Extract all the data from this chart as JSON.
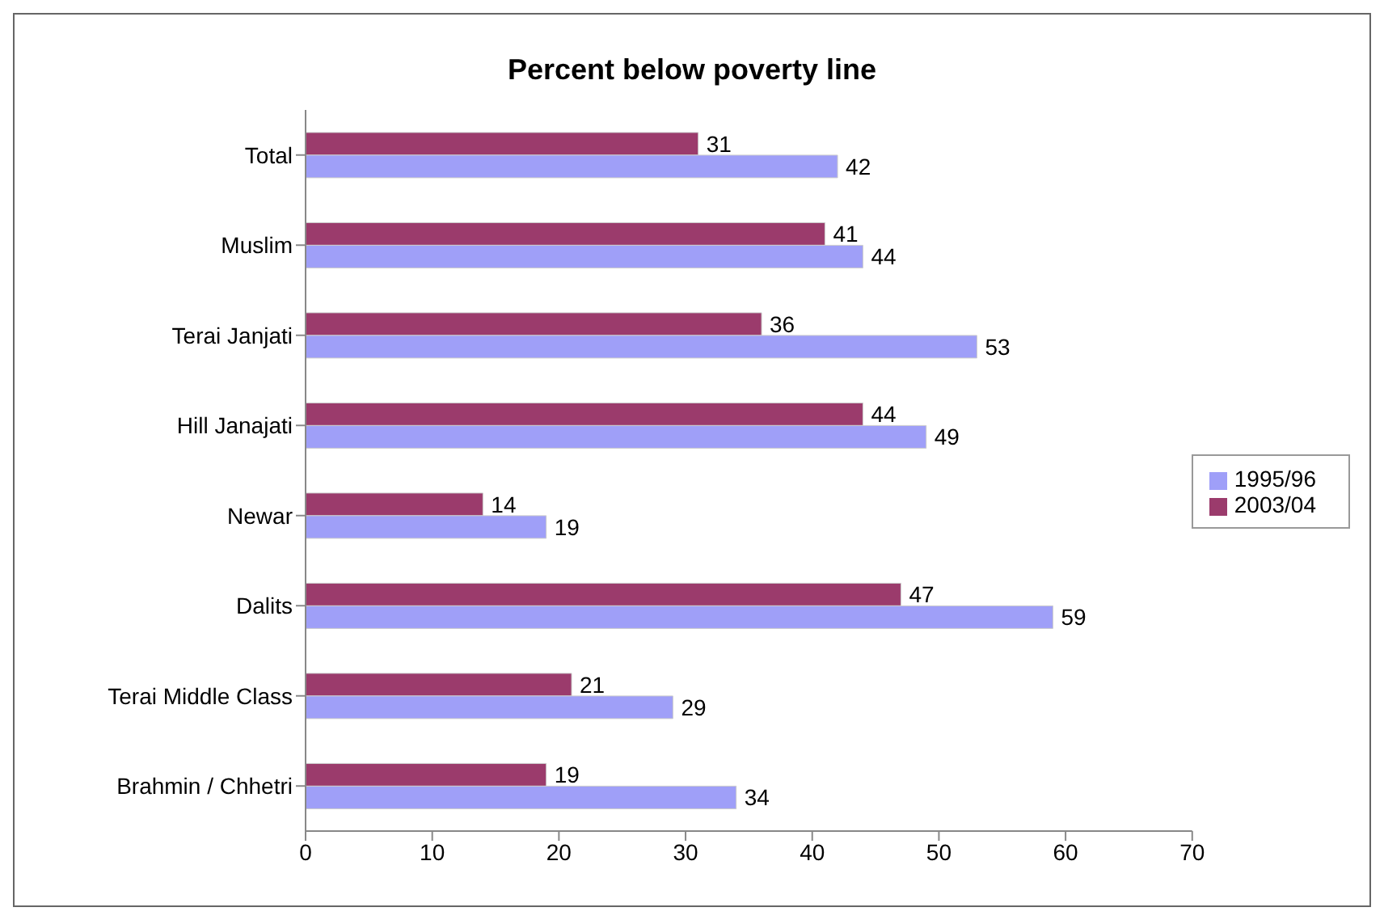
{
  "chart_data": {
    "type": "bar",
    "orientation": "horizontal",
    "title": "Percent below poverty line",
    "categories": [
      "Total",
      "Muslim",
      "Terai Janjati",
      "Hill Janajati",
      "Newar",
      "Dalits",
      "Terai Middle Class",
      "Brahmin / Chhetri"
    ],
    "series": [
      {
        "name": "2003/04",
        "color": "#9b3b6c",
        "values": [
          31,
          41,
          36,
          44,
          14,
          47,
          21,
          19
        ]
      },
      {
        "name": "1995/96",
        "color": "#9f9ff8",
        "values": [
          42,
          44,
          53,
          49,
          19,
          59,
          29,
          34
        ]
      }
    ],
    "xlim": [
      0,
      70
    ],
    "xticks": [
      0,
      10,
      20,
      30,
      40,
      50,
      60,
      70
    ],
    "data_labels": true,
    "grid": false,
    "legend": "right"
  }
}
